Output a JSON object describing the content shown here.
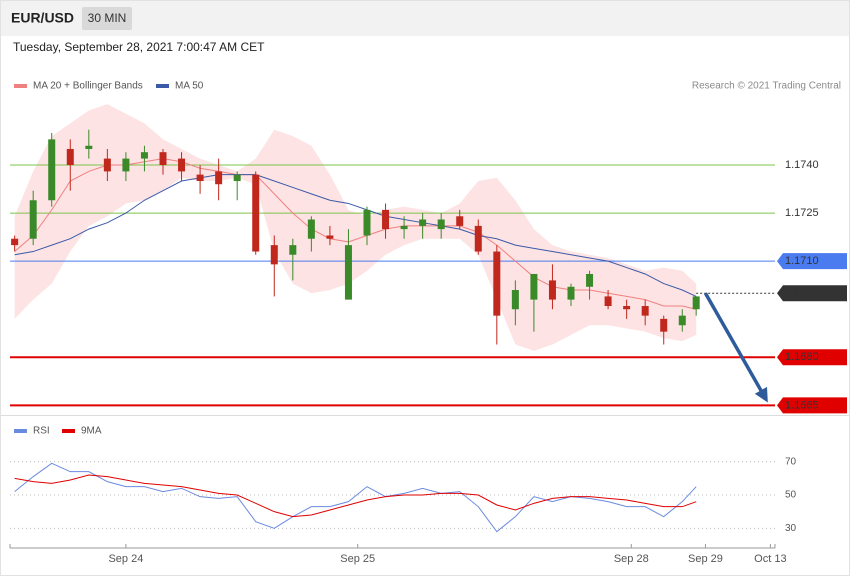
{
  "header": {
    "symbol": "EUR/USD",
    "interval": "30 MIN",
    "timestamp": "Tuesday, September 28, 2021 7:00:47 AM CET",
    "credit": "Research © 2021 Trading Central"
  },
  "chart_data": [
    {
      "type": "candlestick",
      "x": [
        1,
        5,
        9,
        13,
        17,
        21,
        25,
        29,
        33,
        37,
        41,
        45,
        49,
        53,
        57,
        61,
        65,
        69,
        73,
        77,
        81,
        85,
        89,
        93,
        97,
        101,
        105,
        109,
        113,
        117,
        121,
        125,
        129,
        133,
        137,
        141,
        145,
        148
      ],
      "open": [
        1.1717,
        1.1717,
        1.1729,
        1.1745,
        1.1745,
        1.1742,
        1.1738,
        1.1742,
        1.1744,
        1.1742,
        1.1737,
        1.1738,
        1.1735,
        1.1737,
        1.1715,
        1.1712,
        1.1717,
        1.1718,
        1.1698,
        1.1718,
        1.1726,
        1.172,
        1.1721,
        1.172,
        1.1724,
        1.1721,
        1.1713,
        1.1695,
        1.1698,
        1.1704,
        1.1698,
        1.1702,
        1.1699,
        1.1696,
        1.1696,
        1.1692,
        1.169,
        1.1695
      ],
      "high": [
        1.1718,
        1.1732,
        1.175,
        1.1748,
        1.1751,
        1.1745,
        1.1744,
        1.1746,
        1.1745,
        1.1744,
        1.174,
        1.1742,
        1.1738,
        1.1738,
        1.1718,
        1.1717,
        1.1724,
        1.1721,
        1.172,
        1.1727,
        1.1728,
        1.1724,
        1.1725,
        1.1725,
        1.1726,
        1.1723,
        1.1715,
        1.1704,
        1.1706,
        1.1709,
        1.1703,
        1.1707,
        1.1701,
        1.1698,
        1.1698,
        1.1693,
        1.1695,
        1.1699
      ],
      "low": [
        1.1713,
        1.1715,
        1.1727,
        1.1732,
        1.1742,
        1.1735,
        1.1735,
        1.1738,
        1.1737,
        1.1735,
        1.1731,
        1.1729,
        1.1729,
        1.1712,
        1.1699,
        1.1704,
        1.1713,
        1.1715,
        1.1698,
        1.1715,
        1.1717,
        1.1717,
        1.1717,
        1.1717,
        1.172,
        1.1712,
        1.1684,
        1.169,
        1.1688,
        1.1695,
        1.1696,
        1.1698,
        1.1695,
        1.1692,
        1.169,
        1.1684,
        1.1688,
        1.1693
      ],
      "close": [
        1.1715,
        1.1729,
        1.1748,
        1.174,
        1.1746,
        1.1738,
        1.1742,
        1.1744,
        1.174,
        1.1738,
        1.1735,
        1.1734,
        1.1737,
        1.1713,
        1.1709,
        1.1715,
        1.1723,
        1.1717,
        1.1715,
        1.1726,
        1.172,
        1.1721,
        1.1723,
        1.1723,
        1.1721,
        1.1713,
        1.1693,
        1.1701,
        1.1706,
        1.1698,
        1.1702,
        1.1706,
        1.1696,
        1.1695,
        1.1693,
        1.1688,
        1.1693,
        1.1699
      ],
      "up_color": "#3a8a2a",
      "down_color": "#c0281e",
      "overlays": [
        {
          "name": "MA 20 + Bollinger Bands",
          "color": "#f08080",
          "band_color": "#fde3e3",
          "values": [
            1.1713,
            1.1718,
            1.1726,
            1.1735,
            1.1738,
            1.174,
            1.174,
            1.1741,
            1.1742,
            1.1741,
            1.1739,
            1.1738,
            1.1737,
            1.1737,
            1.1731,
            1.1725,
            1.172,
            1.1717,
            1.1716,
            1.1718,
            1.172,
            1.1721,
            1.1721,
            1.1721,
            1.1721,
            1.1719,
            1.1715,
            1.171,
            1.1705,
            1.1702,
            1.1701,
            1.1701,
            1.17,
            1.1699,
            1.1698,
            1.1696,
            1.1696,
            1.1695
          ],
          "upper": [
            1.1724,
            1.1738,
            1.1749,
            1.1753,
            1.1757,
            1.1759,
            1.1756,
            1.1753,
            1.1748,
            1.1745,
            1.1742,
            1.174,
            1.1738,
            1.1742,
            1.1751,
            1.1749,
            1.1746,
            1.1737,
            1.1726,
            1.1724,
            1.1726,
            1.1727,
            1.1726,
            1.1725,
            1.1728,
            1.1735,
            1.1736,
            1.1729,
            1.172,
            1.1715,
            1.1713,
            1.1712,
            1.1711,
            1.1709,
            1.1707,
            1.1708,
            1.1707,
            1.1703
          ],
          "lower": [
            1.1692,
            1.1698,
            1.1703,
            1.1713,
            1.1721,
            1.1724,
            1.1728,
            1.1729,
            1.1732,
            1.1736,
            1.1735,
            1.1735,
            1.1736,
            1.1734,
            1.1713,
            1.1703,
            1.17,
            1.1701,
            1.1703,
            1.1707,
            1.1712,
            1.1715,
            1.1717,
            1.1717,
            1.1717,
            1.1712,
            1.1698,
            1.1684,
            1.1682,
            1.1684,
            1.1687,
            1.169,
            1.169,
            1.1689,
            1.1688,
            1.1686,
            1.1685,
            1.1687
          ]
        },
        {
          "name": "MA 50",
          "color": "#3b5aa8",
          "values": [
            1.1712,
            1.1713,
            1.1715,
            1.1717,
            1.172,
            1.1722,
            1.1725,
            1.1729,
            1.1732,
            1.1735,
            1.1736,
            1.1737,
            1.1737,
            1.1737,
            1.1735,
            1.1733,
            1.1731,
            1.1729,
            1.1728,
            1.1726,
            1.1724,
            1.1723,
            1.1722,
            1.1721,
            1.172,
            1.1718,
            1.1717,
            1.1715,
            1.1714,
            1.1713,
            1.1712,
            1.1711,
            1.171,
            1.1708,
            1.1706,
            1.1703,
            1.1701,
            1.1699
          ]
        }
      ],
      "levels": [
        {
          "value": 1.174,
          "label": "1.1740",
          "color": "#7cc34a",
          "kind": "line"
        },
        {
          "value": 1.1725,
          "label": "1.1725",
          "color": "#7cc34a",
          "kind": "line"
        },
        {
          "value": 1.171,
          "label": "1.1710",
          "color": "#4a7cf0",
          "kind": "box"
        },
        {
          "value": 1.17,
          "label": "1.1700",
          "color": "#333333",
          "kind": "dotted"
        },
        {
          "value": 1.168,
          "label": "1.1680",
          "color": "#e00000",
          "kind": "box"
        },
        {
          "value": 1.1665,
          "label": "1.1665",
          "color": "#e00000",
          "kind": "box"
        }
      ],
      "forecast_arrow": {
        "x": [
          150,
          164
        ],
        "y": [
          1.17,
          1.1665
        ],
        "color": "#2e5c9a"
      },
      "xlim": [
        0,
        165
      ],
      "ylim": [
        1.1662,
        1.1779
      ]
    },
    {
      "type": "line",
      "x": [
        1,
        5,
        9,
        13,
        17,
        21,
        25,
        29,
        33,
        37,
        41,
        45,
        49,
        53,
        57,
        61,
        65,
        69,
        73,
        77,
        81,
        85,
        89,
        93,
        97,
        101,
        105,
        109,
        113,
        117,
        121,
        125,
        129,
        133,
        137,
        141,
        145,
        148
      ],
      "series": [
        {
          "name": "RSI",
          "color": "#6a8ae0",
          "values": [
            52,
            61,
            69,
            64,
            64,
            58,
            55,
            55,
            52,
            54,
            49,
            48,
            49,
            34,
            30,
            37,
            43,
            43,
            46,
            55,
            49,
            51,
            54,
            51,
            52,
            43,
            28,
            37,
            49,
            46,
            49,
            48,
            46,
            43,
            43,
            37,
            46,
            55
          ]
        },
        {
          "name": "9MA",
          "color": "#e00000",
          "values": [
            60,
            58,
            57,
            59,
            62,
            61,
            59,
            57,
            56,
            55,
            53,
            51,
            50,
            45,
            40,
            37,
            38,
            41,
            44,
            47,
            49,
            50,
            50,
            51,
            51,
            50,
            44,
            41,
            45,
            48,
            49,
            49,
            48,
            47,
            45,
            43,
            43,
            46
          ]
        }
      ],
      "xlim": [
        0,
        165
      ],
      "xticks": [
        {
          "value": 25,
          "label": "Sep 24"
        },
        {
          "value": 75,
          "label": "Sep 25"
        },
        {
          "value": 134,
          "label": "Sep 28"
        },
        {
          "value": 150,
          "label": "Sep 29"
        },
        {
          "value": 164,
          "label": "Oct 13"
        }
      ],
      "ylim": [
        20,
        80
      ],
      "yticks": [
        30,
        50,
        70
      ],
      "grid": true
    }
  ]
}
